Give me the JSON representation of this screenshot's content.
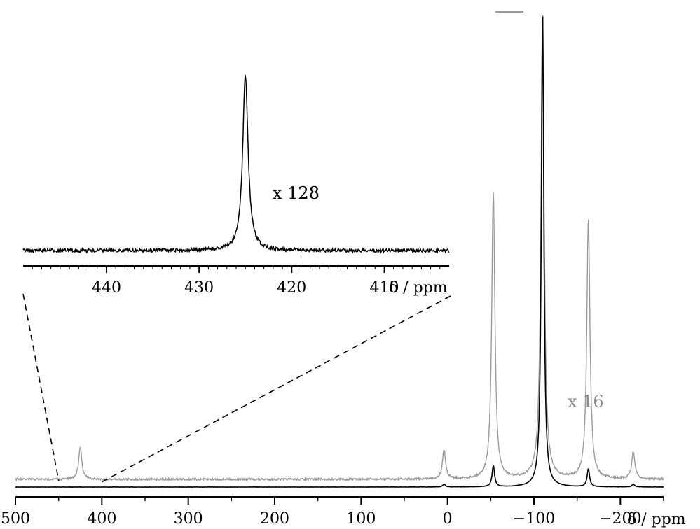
{
  "chart_data": [
    {
      "type": "line",
      "title": "",
      "xlabel": "δ / ppm",
      "x_reversed": true,
      "xlim": [
        500,
        -250
      ],
      "xticks": [
        "500",
        "400",
        "300",
        "200",
        "100",
        "0",
        "−100",
        "−200"
      ],
      "xtick_values": [
        500,
        400,
        300,
        200,
        100,
        0,
        -100,
        -200
      ],
      "colors": {
        "main": "#000000",
        "scaled": "#9a9a9a"
      },
      "series": [
        {
          "annotation": "",
          "baseline_y": 0,
          "peaks": [
            {
              "x": 425,
              "y": 0.0
            },
            {
              "x": 4,
              "y": 0.006
            },
            {
              "x": -53,
              "y": 0.045
            },
            {
              "x": -110,
              "y": 1.0
            },
            {
              "x": -163,
              "y": 0.038
            },
            {
              "x": -215,
              "y": 0.006
            }
          ]
        },
        {
          "annotation": "x 16",
          "baseline_y": 0.015,
          "peaks": [
            {
              "x": 425,
              "y": 0.07
            },
            {
              "x": 4,
              "y": 0.062
            },
            {
              "x": -53,
              "y": 0.62
            },
            {
              "x": -110,
              "y": 1.0
            },
            {
              "x": -163,
              "y": 0.56
            },
            {
              "x": -215,
              "y": 0.058
            }
          ]
        }
      ]
    },
    {
      "type": "line",
      "title": "",
      "xlabel": "δ / ppm",
      "x_reversed": true,
      "xlim": [
        449,
        403
      ],
      "xticks": [
        "440",
        "430",
        "420",
        "410"
      ],
      "xtick_values": [
        440,
        430,
        420,
        410
      ],
      "series": [
        {
          "annotation": "x 128",
          "peaks": [
            {
              "x": 425,
              "y": 1.0
            }
          ]
        }
      ]
    }
  ]
}
